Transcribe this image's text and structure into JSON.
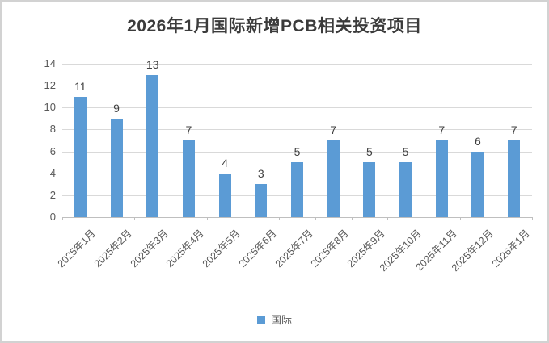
{
  "title": "2026年1月国际新增PCB相关投资项目",
  "legend": {
    "label": "国际",
    "swatch_color": "#5b9bd5"
  },
  "colors": {
    "bar": "#5b9bd5",
    "gridline": "#d9d9d9",
    "axis": "#bfbfbf",
    "axis_text": "#595959",
    "data_label_text": "#404040",
    "title_text": "#3b3b3b",
    "frame_border": "#d2d2d2",
    "background": "#ffffff"
  },
  "chart_data": {
    "type": "bar",
    "title": "2026年1月国际新增PCB相关投资项目",
    "categories": [
      "2025年1月",
      "2025年2月",
      "2025年3月",
      "2025年4月",
      "2025年5月",
      "2025年6月",
      "2025年7月",
      "2025年8月",
      "2025年9月",
      "2025年10月",
      "2025年11月",
      "2025年12月",
      "2026年1月"
    ],
    "series": [
      {
        "name": "国际",
        "values": [
          11,
          9,
          13,
          7,
          4,
          3,
          5,
          7,
          5,
          5,
          7,
          6,
          7
        ]
      }
    ],
    "xlabel": "",
    "ylabel": "",
    "ylim": [
      0,
      14
    ],
    "yticks": [
      0,
      2,
      4,
      6,
      8,
      10,
      12,
      14
    ],
    "grid": true,
    "data_labels": true,
    "legend_position": "bottom",
    "x_label_rotation_deg": -45
  }
}
